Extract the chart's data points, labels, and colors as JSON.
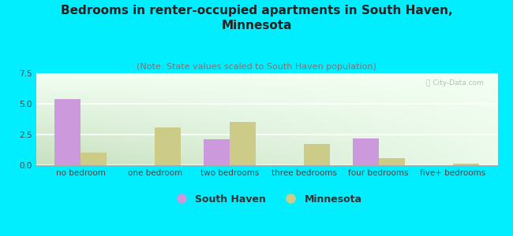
{
  "title": "Bedrooms in renter-occupied apartments in South Haven,\nMinnesota",
  "subtitle": "(Note: State values scaled to South Haven population)",
  "categories": [
    "no bedroom",
    "one bedroom",
    "two bedrooms",
    "three bedrooms",
    "four bedrooms",
    "five+ bedrooms"
  ],
  "south_haven": [
    5.4,
    0,
    2.1,
    0,
    2.2,
    0
  ],
  "minnesota": [
    1.0,
    3.1,
    3.5,
    1.7,
    0.55,
    0.13
  ],
  "south_haven_color": "#cc99dd",
  "minnesota_color": "#cccc88",
  "bg_color": "#00eeff",
  "ylim": [
    0,
    7.5
  ],
  "yticks": [
    0,
    2.5,
    5,
    7.5
  ],
  "bar_width": 0.35,
  "title_fontsize": 11,
  "subtitle_fontsize": 8,
  "tick_fontsize": 7.5,
  "legend_fontsize": 9
}
